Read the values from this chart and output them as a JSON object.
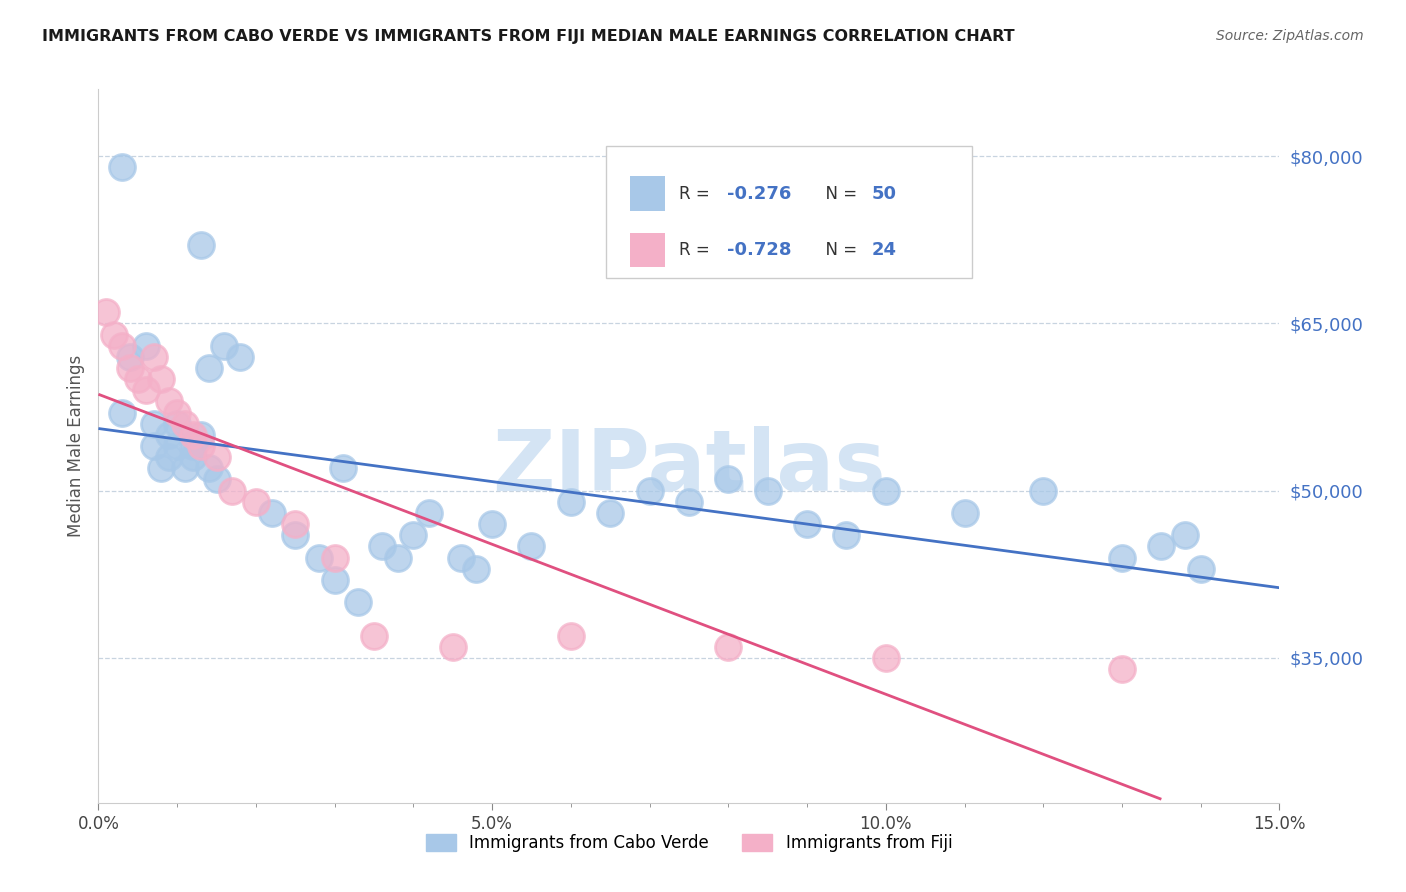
{
  "title": "IMMIGRANTS FROM CABO VERDE VS IMMIGRANTS FROM FIJI MEDIAN MALE EARNINGS CORRELATION CHART",
  "source": "Source: ZipAtlas.com",
  "ylabel": "Median Male Earnings",
  "xlim": [
    0.0,
    0.15
  ],
  "ylim_low": 22000,
  "ylim_high": 86000,
  "xtick_labels": [
    "0.0%",
    "",
    "",
    "",
    "",
    "5.0%",
    "",
    "",
    "",
    "",
    "10.0%",
    "",
    "",
    "",
    "",
    "15.0%"
  ],
  "xtick_positions": [
    0.0,
    0.01,
    0.02,
    0.03,
    0.04,
    0.05,
    0.06,
    0.07,
    0.08,
    0.09,
    0.1,
    0.11,
    0.12,
    0.13,
    0.14,
    0.15
  ],
  "ytick_labels": [
    "$35,000",
    "$50,000",
    "$65,000",
    "$80,000"
  ],
  "ytick_positions": [
    35000,
    50000,
    65000,
    80000
  ],
  "cabo_verde_color": "#a8c8e8",
  "fiji_color": "#f4b0c8",
  "cabo_verde_line_color": "#4472c4",
  "fiji_line_color": "#e05080",
  "watermark": "ZIPatlas",
  "watermark_color": "#d4e4f4",
  "cabo_verde_R": "-0.276",
  "cabo_verde_N": "50",
  "fiji_R": "-0.728",
  "fiji_N": "24",
  "cabo_verde_x": [
    0.003,
    0.013,
    0.003,
    0.004,
    0.006,
    0.007,
    0.007,
    0.008,
    0.009,
    0.009,
    0.01,
    0.01,
    0.011,
    0.012,
    0.012,
    0.013,
    0.014,
    0.014,
    0.015,
    0.016,
    0.018,
    0.022,
    0.025,
    0.028,
    0.03,
    0.031,
    0.033,
    0.036,
    0.038,
    0.04,
    0.042,
    0.046,
    0.048,
    0.05,
    0.055,
    0.06,
    0.065,
    0.07,
    0.075,
    0.08,
    0.085,
    0.09,
    0.095,
    0.1,
    0.11,
    0.12,
    0.13,
    0.135,
    0.138,
    0.14
  ],
  "cabo_verde_y": [
    79000,
    72000,
    57000,
    62000,
    63000,
    54000,
    56000,
    52000,
    53000,
    55000,
    54000,
    56000,
    52000,
    54000,
    53000,
    55000,
    52000,
    61000,
    51000,
    63000,
    62000,
    48000,
    46000,
    44000,
    42000,
    52000,
    40000,
    45000,
    44000,
    46000,
    48000,
    44000,
    43000,
    47000,
    45000,
    49000,
    48000,
    50000,
    49000,
    51000,
    50000,
    47000,
    46000,
    50000,
    48000,
    50000,
    44000,
    45000,
    46000,
    43000
  ],
  "fiji_x": [
    0.001,
    0.002,
    0.003,
    0.004,
    0.005,
    0.006,
    0.007,
    0.008,
    0.009,
    0.01,
    0.011,
    0.012,
    0.013,
    0.015,
    0.017,
    0.02,
    0.025,
    0.03,
    0.035,
    0.045,
    0.06,
    0.08,
    0.1,
    0.13
  ],
  "fiji_y": [
    66000,
    64000,
    63000,
    61000,
    60000,
    59000,
    62000,
    60000,
    58000,
    57000,
    56000,
    55000,
    54000,
    53000,
    50000,
    49000,
    47000,
    44000,
    37000,
    36000,
    37000,
    36000,
    35000,
    34000
  ]
}
